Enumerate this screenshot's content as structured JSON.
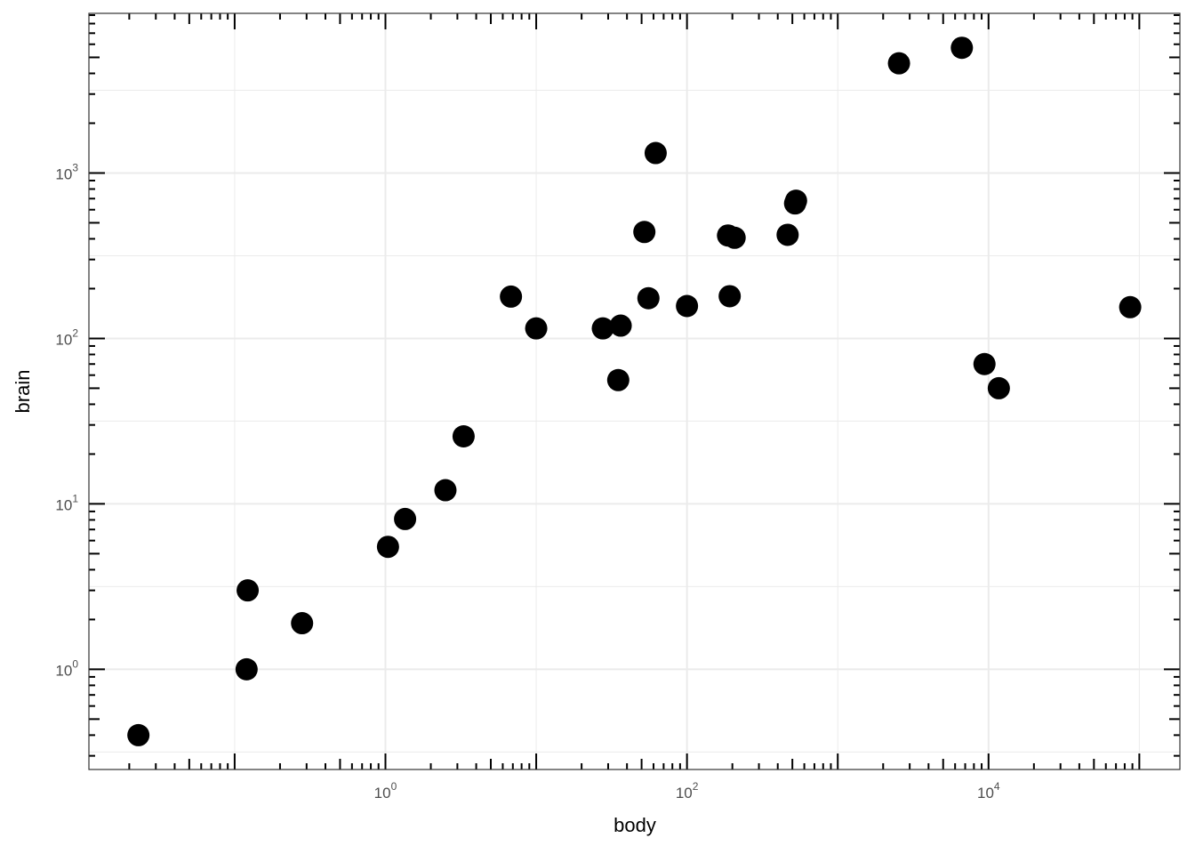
{
  "chart_data": {
    "type": "scatter",
    "x_label": "body",
    "y_label": "brain",
    "log_x": true,
    "log_y": true,
    "grid": true,
    "color": "#000000",
    "x": [
      1.35,
      465,
      36.33,
      27.66,
      1.04,
      11700,
      2547,
      187.1,
      521,
      10,
      3.3,
      529,
      207,
      62,
      6654,
      9400,
      6.8,
      35,
      0.12,
      0.023,
      2.5,
      55.5,
      100,
      52.16,
      0.28,
      87000,
      0.122,
      192
    ],
    "values": [
      8.1,
      423,
      119.5,
      115,
      5.5,
      50,
      4603,
      419,
      655,
      115,
      25.6,
      680,
      406,
      1320,
      5712,
      70,
      179,
      56,
      1,
      0.4,
      12.1,
      175,
      157,
      440,
      1.9,
      154.5,
      3,
      180
    ],
    "xlim": [
      0.0108,
      185800
    ],
    "ylim": [
      0.248,
      9226
    ],
    "xticks": [
      {
        "value": 1,
        "label": "10",
        "sup": "0"
      },
      {
        "value": 100,
        "label": "10",
        "sup": "2"
      },
      {
        "value": 10000,
        "label": "10",
        "sup": "4"
      }
    ],
    "yticks": [
      {
        "value": 1,
        "label": "10",
        "sup": "0"
      },
      {
        "value": 10,
        "label": "10",
        "sup": "1"
      },
      {
        "value": 100,
        "label": "10",
        "sup": "2"
      },
      {
        "value": 1000,
        "label": "10",
        "sup": "3"
      }
    ],
    "xminor": [
      0.1,
      10,
      1000,
      100000
    ],
    "yminor": [
      0.316,
      3.162,
      31.62,
      316.2,
      3162
    ]
  }
}
